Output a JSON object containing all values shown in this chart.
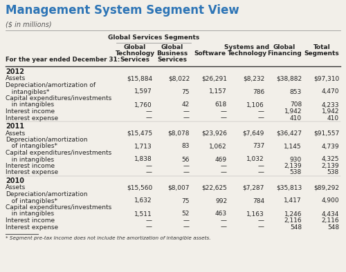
{
  "title": "Management System Segment View",
  "subtitle": "($ in millions)",
  "title_color": "#2E75B6",
  "subtitle_color": "#555555",
  "col_group_header": "Global Services Segments",
  "col_headers_line1": [
    "Global",
    "Global",
    "",
    "Systems and",
    "Global",
    "Total"
  ],
  "col_headers_line2": [
    "Technology",
    "Business",
    "Software",
    "Technology",
    "Financing",
    "Segments"
  ],
  "col_headers_line3": [
    "Services",
    "Services",
    "",
    "",
    "",
    ""
  ],
  "row_label_header": "For the year ended December 31:",
  "years": [
    "2012",
    "2011",
    "2010"
  ],
  "row_labels_2012": [
    "Assets",
    "Depreciation/amortization of",
    "   intangibles*",
    "Capital expenditures/investments",
    "   in intangibles",
    "Interest income",
    "Interest expense"
  ],
  "row_labels_2011": [
    "Assets",
    "Depreciation/amortization",
    "   of intangibles*",
    "Capital expenditures/investments",
    "   in intangibles",
    "Interest income",
    "Interest expense"
  ],
  "row_labels_2010": [
    "Assets",
    "Depreciation/amortization",
    "   of intangibles*",
    "Capital expenditures/investments",
    "   in intangibles",
    "Interest income",
    "Interest expense"
  ],
  "data_2012": [
    [
      "$15,884",
      "$8,022",
      "$26,291",
      "$8,232",
      "$38,882",
      "$97,310"
    ],
    [
      "",
      "",
      "",
      "",
      "",
      ""
    ],
    [
      "1,597",
      "75",
      "1,157",
      "786",
      "853",
      "4,470"
    ],
    [
      "",
      "",
      "",
      "",
      "",
      ""
    ],
    [
      "1,760",
      "42",
      "618",
      "1,106",
      "708",
      "4,233"
    ],
    [
      "—",
      "—",
      "—",
      "—",
      "1,942",
      "1,942"
    ],
    [
      "—",
      "—",
      "—",
      "—",
      "410",
      "410"
    ]
  ],
  "data_2011": [
    [
      "$15,475",
      "$8,078",
      "$23,926",
      "$7,649",
      "$36,427",
      "$91,557"
    ],
    [
      "",
      "",
      "",
      "",
      "",
      ""
    ],
    [
      "1,713",
      "83",
      "1,062",
      "737",
      "1,145",
      "4,739"
    ],
    [
      "",
      "",
      "",
      "",
      "",
      ""
    ],
    [
      "1,838",
      "56",
      "469",
      "1,032",
      "930",
      "4,325"
    ],
    [
      "—",
      "—",
      "—",
      "—",
      "2,139",
      "2,139"
    ],
    [
      "—",
      "—",
      "—",
      "—",
      "538",
      "538"
    ]
  ],
  "data_2010": [
    [
      "$15,560",
      "$8,007",
      "$22,625",
      "$7,287",
      "$35,813",
      "$89,292"
    ],
    [
      "",
      "",
      "",
      "",
      "",
      ""
    ],
    [
      "1,632",
      "75",
      "992",
      "784",
      "1,417",
      "4,900"
    ],
    [
      "",
      "",
      "",
      "",
      "",
      ""
    ],
    [
      "1,511",
      "52",
      "463",
      "1,163",
      "1,246",
      "4,434"
    ],
    [
      "—",
      "—",
      "—",
      "—",
      "2,116",
      "2,116"
    ],
    [
      "—",
      "—",
      "—",
      "—",
      "548",
      "548"
    ]
  ],
  "footnote": "* Segment pre-tax Income does not include the amortization of intangible assets.",
  "bg_color": "#F2EFE9",
  "text_color": "#222222",
  "title_fontsize": 12,
  "subtitle_fontsize": 7,
  "header_fontsize": 6.5,
  "data_fontsize": 6.5,
  "year_fontsize": 7
}
